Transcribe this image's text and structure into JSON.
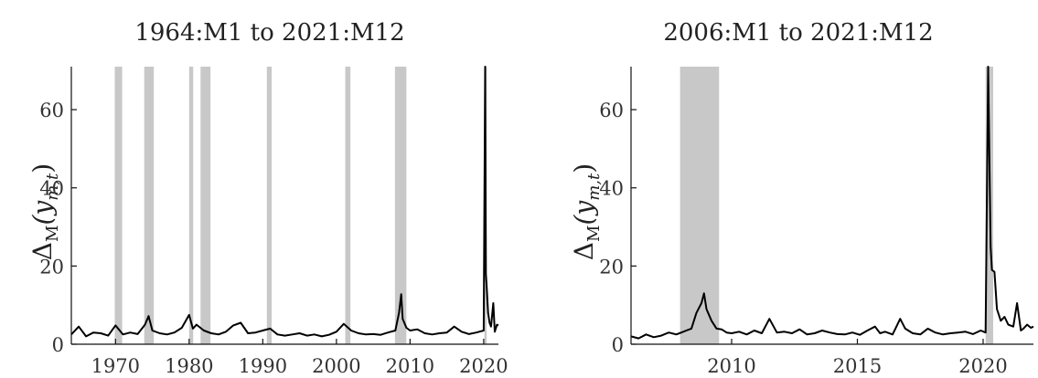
{
  "chart_data": [
    {
      "type": "line",
      "title": "1964:M1 to 2021:M12",
      "ylabel_html": "Δ_M(y_{m,t})",
      "ylabel": {
        "main": "Δ",
        "sub": "M",
        "open": "(y",
        "subsub": "m,t",
        "close": ")"
      },
      "xlim": [
        1964.0,
        2022.0
      ],
      "ylim": [
        0,
        71
      ],
      "xticks": [
        1970,
        1980,
        1990,
        2000,
        2010,
        2020
      ],
      "xtick_labels": [
        "1970",
        "1980",
        "1990",
        "2000",
        "2010",
        "2020"
      ],
      "yticks": [
        0,
        20,
        40,
        60
      ],
      "ytick_labels": [
        "0",
        "20",
        "40",
        "60"
      ],
      "recessions": [
        [
          1969.9,
          1970.9
        ],
        [
          1973.9,
          1975.2
        ],
        [
          1980.0,
          1980.55
        ],
        [
          1981.55,
          1982.9
        ],
        [
          1990.55,
          1991.2
        ],
        [
          2001.2,
          2001.9
        ],
        [
          2007.95,
          2009.5
        ],
        [
          2020.1,
          2020.4
        ]
      ],
      "series": [
        {
          "x": [
            1964.0,
            1965.0,
            1966.0,
            1967.0,
            1968.0,
            1969.0,
            1970.0,
            1971.0,
            1972.0,
            1973.0,
            1974.0,
            1974.5,
            1975.0,
            1976.0,
            1977.0,
            1978.0,
            1979.0,
            1980.0,
            1980.5,
            1981.0,
            1982.0,
            1983.0,
            1984.0,
            1985.0,
            1986.0,
            1987.0,
            1988.0,
            1989.0,
            1990.0,
            1991.0,
            1992.0,
            1993.0,
            1994.0,
            1995.0,
            1996.0,
            1997.0,
            1998.0,
            1999.0,
            2000.0,
            2001.0,
            2002.0,
            2003.0,
            2004.0,
            2005.0,
            2006.0,
            2007.0,
            2008.0,
            2008.5,
            2008.8,
            2009.0,
            2009.5,
            2010.0,
            2011.0,
            2012.0,
            2013.0,
            2014.0,
            2015.0,
            2016.0,
            2017.0,
            2018.0,
            2019.0,
            2020.0,
            2020.2,
            2020.3,
            2020.4,
            2020.6,
            2020.8,
            2021.0,
            2021.3,
            2021.5,
            2021.8,
            2022.0
          ],
          "y": [
            2.5,
            4.5,
            2.0,
            3.0,
            2.8,
            2.2,
            4.8,
            2.5,
            3.0,
            2.6,
            5.0,
            7.2,
            3.5,
            2.8,
            2.5,
            3.0,
            4.2,
            7.5,
            4.0,
            5.0,
            3.5,
            2.8,
            2.5,
            3.2,
            4.8,
            5.5,
            2.8,
            3.0,
            3.5,
            4.0,
            2.5,
            2.2,
            2.5,
            2.8,
            2.2,
            2.5,
            2.0,
            2.4,
            3.2,
            5.2,
            3.5,
            2.8,
            2.5,
            2.6,
            2.4,
            3.0,
            3.5,
            8.0,
            12.8,
            6.5,
            4.2,
            3.5,
            3.8,
            2.8,
            2.5,
            2.8,
            3.0,
            4.5,
            3.2,
            2.6,
            3.0,
            3.5,
            71.0,
            18.0,
            15.0,
            8.0,
            5.5,
            4.5,
            10.5,
            3.2,
            5.0,
            4.8
          ]
        }
      ]
    },
    {
      "type": "line",
      "title": "2006:M1 to 2021:M12",
      "ylabel_html": "Δ_M(y_{m,t})",
      "ylabel": {
        "main": "Δ",
        "sub": "M",
        "open": "(y",
        "subsub": "m,t",
        "close": ")"
      },
      "xlim": [
        2006.0,
        2022.0
      ],
      "ylim": [
        0,
        71
      ],
      "xticks": [
        2010,
        2015,
        2020
      ],
      "xtick_labels": [
        "2010",
        "2015",
        "2020"
      ],
      "yticks": [
        0,
        20,
        40,
        60
      ],
      "ytick_labels": [
        "0",
        "20",
        "40",
        "60"
      ],
      "recessions": [
        [
          2007.95,
          2009.5
        ],
        [
          2020.1,
          2020.4
        ]
      ],
      "series": [
        {
          "x": [
            2006.0,
            2006.3,
            2006.6,
            2006.9,
            2007.2,
            2007.5,
            2007.8,
            2008.0,
            2008.2,
            2008.4,
            2008.6,
            2008.8,
            2008.9,
            2009.0,
            2009.2,
            2009.4,
            2009.6,
            2009.8,
            2010.0,
            2010.3,
            2010.6,
            2010.9,
            2011.2,
            2011.5,
            2011.8,
            2012.1,
            2012.4,
            2012.7,
            2013.0,
            2013.3,
            2013.6,
            2013.9,
            2014.2,
            2014.5,
            2014.8,
            2015.1,
            2015.4,
            2015.7,
            2015.9,
            2016.1,
            2016.4,
            2016.7,
            2016.9,
            2017.2,
            2017.5,
            2017.8,
            2018.1,
            2018.4,
            2018.7,
            2019.0,
            2019.3,
            2019.6,
            2019.9,
            2020.1,
            2020.2,
            2020.3,
            2020.35,
            2020.45,
            2020.55,
            2020.7,
            2020.85,
            2021.0,
            2021.2,
            2021.35,
            2021.5,
            2021.6,
            2021.75,
            2021.9,
            2022.0
          ],
          "y": [
            2.0,
            1.5,
            2.5,
            1.8,
            2.2,
            3.0,
            2.5,
            3.0,
            3.5,
            4.0,
            8.0,
            10.5,
            13.0,
            9.0,
            6.0,
            4.0,
            3.8,
            3.0,
            2.8,
            3.2,
            2.5,
            3.5,
            2.8,
            6.5,
            3.0,
            3.2,
            2.8,
            3.8,
            2.5,
            2.8,
            3.5,
            3.0,
            2.6,
            2.5,
            3.0,
            2.4,
            3.5,
            4.5,
            2.8,
            3.2,
            2.5,
            6.5,
            4.0,
            2.8,
            2.5,
            4.0,
            3.0,
            2.5,
            2.8,
            3.0,
            3.2,
            2.6,
            3.5,
            3.0,
            71.0,
            25.0,
            19.0,
            18.5,
            9.0,
            6.0,
            7.0,
            5.0,
            4.5,
            10.5,
            3.5,
            4.0,
            5.0,
            4.2,
            4.5
          ]
        }
      ]
    }
  ]
}
